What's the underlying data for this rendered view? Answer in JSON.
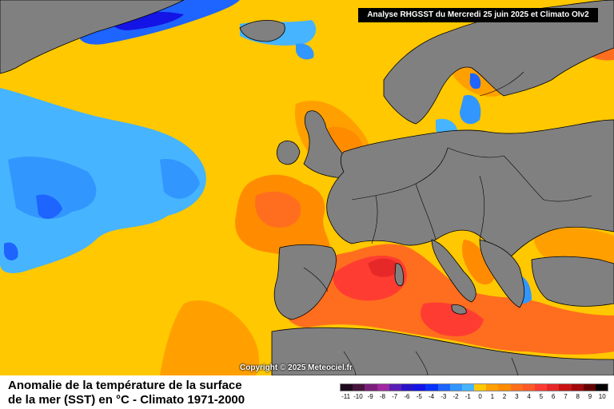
{
  "header": {
    "analysis_title": "Analyse RHGSST  du Mercredi 25 juin 2025 et Climato OIv2"
  },
  "map": {
    "copyright": "Copyright © 2025 Meteociel.fr",
    "title_line1": "Anomalie de la température de la surface",
    "title_line2": "de la mer (SST) en °C - Climato 1971-2000",
    "colors": {
      "land": "#808080",
      "coast": "#000000",
      "neutral": "#ffc800"
    }
  },
  "legend": {
    "ticks": [
      "-11",
      "-10",
      "-9",
      "-8",
      "-7",
      "-6",
      "-5",
      "-4",
      "-3",
      "-2",
      "-1",
      "0",
      "1",
      "2",
      "3",
      "4",
      "5",
      "6",
      "7",
      "8",
      "9",
      "10"
    ],
    "colors": [
      "#1e0a1e",
      "#46143c",
      "#7a1e7a",
      "#a028a0",
      "#5a1eb4",
      "#2814c8",
      "#1414e6",
      "#0a32ff",
      "#1e64ff",
      "#3296ff",
      "#46b4ff",
      "#ffc800",
      "#ffa000",
      "#ff8c00",
      "#ff6e1e",
      "#ff5a28",
      "#ff3c32",
      "#e62828",
      "#c81414",
      "#a00a0a",
      "#640000",
      "#000000"
    ]
  }
}
